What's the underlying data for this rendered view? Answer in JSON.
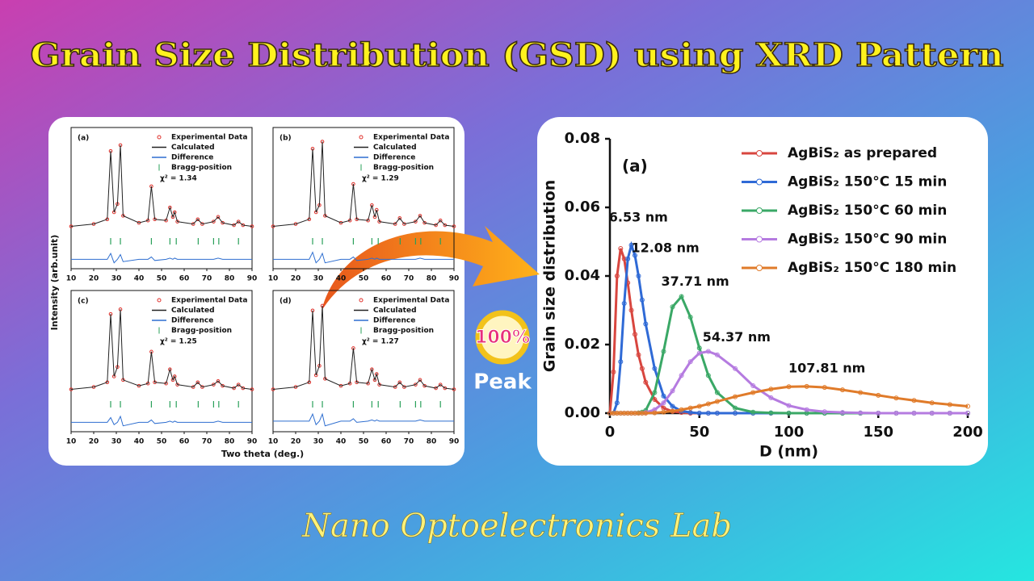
{
  "title": "Grain Size Distribution (GSD) using XRD Pattern",
  "left_figure": {
    "xlabel": "Two theta (deg.)",
    "ylabel": "Intensity (arb.unit)"
  },
  "badge": {
    "top": "100%",
    "bottom": "Peak"
  },
  "footer": "Nano Optoelectronics Lab",
  "chart_data": [
    {
      "type": "line",
      "panel_label": "(a)",
      "box": true,
      "annotation": "χ² = 1.34",
      "x": [
        10,
        20,
        26,
        27.5,
        29,
        30.5,
        31.8,
        33,
        40,
        44,
        45.5,
        47,
        52,
        53.7,
        55,
        55.8,
        57,
        64,
        66,
        68,
        73,
        75,
        77,
        82,
        84,
        86,
        90
      ],
      "xlim": [
        10,
        90
      ],
      "xticks": [
        10,
        20,
        30,
        40,
        50,
        60,
        70,
        80,
        90
      ],
      "ylim": [
        -20,
        100
      ],
      "series": [
        {
          "name": "Experimental Data",
          "color": "#e0302a",
          "marker": "circle",
          "values": [
            16,
            18,
            22,
            80,
            28,
            35,
            85,
            25,
            19,
            21,
            50,
            22,
            21,
            32,
            24,
            28,
            20,
            18,
            22,
            18,
            20,
            24,
            19,
            17,
            20,
            17,
            16
          ]
        },
        {
          "name": "Calculated",
          "color": "#222222",
          "values": [
            16,
            18,
            22,
            80,
            28,
            35,
            85,
            25,
            19,
            21,
            50,
            22,
            21,
            32,
            24,
            28,
            20,
            18,
            22,
            18,
            20,
            24,
            19,
            17,
            20,
            17,
            16
          ]
        },
        {
          "name": "Difference",
          "color": "#2f6fd0",
          "values": [
            -12,
            -12,
            -12,
            -7,
            -15,
            -12,
            -8,
            -14,
            -12,
            -12,
            -10,
            -13,
            -12,
            -11,
            -12,
            -11,
            -12,
            -12,
            -12,
            -12,
            -12,
            -11,
            -12,
            -12,
            -12,
            -12,
            -12
          ]
        },
        {
          "name": "Bragg-position",
          "color": "#2aa05a",
          "marker": "tick",
          "x": [
            27.5,
            31.8,
            45.5,
            53.7,
            56.5,
            66.2,
            73,
            75.3,
            84
          ]
        }
      ]
    },
    {
      "type": "line",
      "panel_label": "(b)",
      "box": true,
      "annotation": "χ² = 1.29",
      "x": [
        10,
        20,
        26,
        27.5,
        29,
        30.5,
        31.8,
        33,
        40,
        44,
        45.5,
        47,
        52,
        53.7,
        55,
        55.8,
        57,
        64,
        66,
        68,
        73,
        75,
        77,
        82,
        84,
        86,
        90
      ],
      "xlim": [
        10,
        90
      ],
      "xticks": [
        10,
        20,
        30,
        40,
        50,
        60,
        70,
        80,
        90
      ],
      "ylim": [
        -20,
        100
      ],
      "series": [
        {
          "name": "Experimental Data",
          "color": "#e0302a",
          "marker": "circle",
          "values": [
            16,
            18,
            22,
            82,
            28,
            34,
            88,
            25,
            19,
            21,
            52,
            22,
            21,
            34,
            24,
            30,
            20,
            18,
            23,
            18,
            20,
            25,
            19,
            17,
            21,
            17,
            16
          ]
        },
        {
          "name": "Calculated",
          "color": "#222222",
          "values": [
            16,
            18,
            22,
            82,
            28,
            34,
            88,
            25,
            19,
            21,
            52,
            22,
            21,
            34,
            24,
            30,
            20,
            18,
            23,
            18,
            20,
            25,
            19,
            17,
            21,
            17,
            16
          ]
        },
        {
          "name": "Difference",
          "color": "#2f6fd0",
          "values": [
            -12,
            -12,
            -12,
            -6,
            -15,
            -12,
            -7,
            -15,
            -12,
            -12,
            -10,
            -13,
            -12,
            -11,
            -12,
            -11,
            -12,
            -12,
            -12,
            -12,
            -12,
            -11,
            -12,
            -12,
            -12,
            -12,
            -12
          ]
        },
        {
          "name": "Bragg-position",
          "color": "#2aa05a",
          "marker": "tick",
          "x": [
            27.5,
            31.8,
            45.5,
            53.7,
            56.5,
            66.2,
            73,
            75.3,
            84
          ]
        }
      ]
    },
    {
      "type": "line",
      "panel_label": "(c)",
      "box": true,
      "annotation": "χ² = 1.25",
      "x": [
        10,
        20,
        26,
        27.5,
        29,
        30.5,
        31.8,
        33,
        40,
        44,
        45.5,
        47,
        52,
        53.7,
        55,
        55.8,
        57,
        64,
        66,
        68,
        73,
        75,
        77,
        82,
        84,
        86,
        90
      ],
      "xlim": [
        10,
        90
      ],
      "xticks": [
        10,
        20,
        30,
        40,
        50,
        60,
        70,
        80,
        90
      ],
      "ylim": [
        -20,
        100
      ],
      "series": [
        {
          "name": "Experimental Data",
          "color": "#e0302a",
          "marker": "circle",
          "values": [
            16,
            18,
            22,
            80,
            27,
            35,
            84,
            24,
            19,
            21,
            48,
            22,
            21,
            33,
            24,
            27,
            20,
            18,
            22,
            18,
            20,
            23,
            19,
            17,
            20,
            17,
            16
          ]
        },
        {
          "name": "Calculated",
          "color": "#222222",
          "values": [
            16,
            18,
            22,
            80,
            27,
            35,
            84,
            24,
            19,
            21,
            48,
            22,
            21,
            33,
            24,
            27,
            20,
            18,
            22,
            18,
            20,
            23,
            19,
            17,
            20,
            17,
            16
          ]
        },
        {
          "name": "Difference",
          "color": "#2f6fd0",
          "values": [
            -12,
            -12,
            -12,
            -8,
            -14,
            -12,
            -7,
            -15,
            -12,
            -12,
            -10,
            -13,
            -12,
            -11,
            -12,
            -11,
            -12,
            -12,
            -12,
            -12,
            -12,
            -11,
            -12,
            -12,
            -12,
            -12,
            -12
          ]
        },
        {
          "name": "Bragg-position",
          "color": "#2aa05a",
          "marker": "tick",
          "x": [
            27.5,
            31.8,
            45.5,
            53.7,
            56.5,
            66.2,
            73,
            75.3,
            84
          ]
        }
      ]
    },
    {
      "type": "line",
      "panel_label": "(d)",
      "box": true,
      "annotation": "χ² = 1.27",
      "x": [
        10,
        20,
        26,
        27.5,
        29,
        30.5,
        31.8,
        33,
        40,
        44,
        45.5,
        47,
        52,
        53.7,
        55,
        55.8,
        57,
        64,
        66,
        68,
        73,
        75,
        77,
        82,
        84,
        86,
        90
      ],
      "xlim": [
        10,
        90
      ],
      "xticks": [
        10,
        20,
        30,
        40,
        50,
        60,
        70,
        80,
        90
      ],
      "ylim": [
        -20,
        100
      ],
      "series": [
        {
          "name": "Experimental Data",
          "color": "#e0302a",
          "marker": "circle",
          "values": [
            16,
            18,
            22,
            83,
            28,
            36,
            87,
            25,
            19,
            21,
            51,
            22,
            21,
            33,
            24,
            29,
            20,
            18,
            22,
            18,
            20,
            24,
            19,
            17,
            20,
            17,
            16
          ]
        },
        {
          "name": "Calculated",
          "color": "#222222",
          "values": [
            16,
            18,
            22,
            83,
            28,
            36,
            87,
            25,
            19,
            21,
            51,
            22,
            21,
            33,
            24,
            29,
            20,
            18,
            22,
            18,
            20,
            24,
            19,
            17,
            20,
            17,
            16
          ]
        },
        {
          "name": "Difference",
          "color": "#2f6fd0",
          "values": [
            -11,
            -11,
            -11,
            -5,
            -14,
            -11,
            -5,
            -15,
            -11,
            -11,
            -9,
            -12,
            -11,
            -10,
            -11,
            -10,
            -11,
            -11,
            -11,
            -11,
            -11,
            -10,
            -11,
            -11,
            -11,
            -11,
            -11
          ]
        },
        {
          "name": "Bragg-position",
          "color": "#2aa05a",
          "marker": "tick",
          "x": [
            27.5,
            31.8,
            45.5,
            53.7,
            56.5,
            66.2,
            73,
            75.3,
            84
          ]
        }
      ]
    },
    {
      "type": "line",
      "panel_label": "(a)",
      "box": false,
      "legend": "upper right",
      "xlabel": "D (nm)",
      "ylabel": "Grain size distribution",
      "x": [
        0,
        2,
        4,
        6,
        8,
        10,
        12,
        14,
        16,
        18,
        20,
        25,
        30,
        35,
        40,
        45,
        50,
        55,
        60,
        70,
        80,
        90,
        100,
        110,
        120,
        130,
        140,
        150,
        160,
        170,
        180,
        190,
        200
      ],
      "xlim": [
        0,
        200
      ],
      "xticks": [
        0,
        50,
        100,
        150,
        200
      ],
      "ylim": [
        0,
        0.08
      ],
      "yticks": [
        {
          "value": 0,
          "label": "0.00"
        },
        0.02,
        0.04,
        0.06,
        0.08
      ],
      "annotations": [
        "6.53 nm",
        "12.08 nm",
        "37.71 nm",
        "54.37 nm",
        "107.81 nm"
      ],
      "series": [
        {
          "name": "AgBiS₂ as prepared",
          "color": "#d8463f",
          "marker": "circle",
          "values": [
            0,
            0.012,
            0.04,
            0.048,
            0.045,
            0.038,
            0.03,
            0.023,
            0.017,
            0.013,
            0.009,
            0.004,
            0.0015,
            0.0005,
            0.0002,
            0,
            0,
            0,
            0,
            0,
            0,
            0,
            0,
            0,
            0,
            0,
            0,
            0,
            0,
            0,
            0,
            0,
            0
          ]
        },
        {
          "name": "AgBiS₂ 150°C 15 min",
          "color": "#2f6ad6",
          "marker": "circle",
          "values": [
            0,
            0,
            0.003,
            0.015,
            0.032,
            0.045,
            0.049,
            0.046,
            0.04,
            0.033,
            0.026,
            0.013,
            0.005,
            0.002,
            0.0006,
            0.0002,
            0,
            0,
            0,
            0,
            0,
            0,
            0,
            0,
            0,
            0,
            0,
            0,
            0,
            0,
            0,
            0,
            0
          ]
        },
        {
          "name": "AgBiS₂ 150°C 60 min",
          "color": "#3aa866",
          "marker": "circle",
          "values": [
            0,
            0,
            0,
            0,
            0,
            0,
            0,
            0,
            0.0001,
            0.0003,
            0.0008,
            0.006,
            0.018,
            0.031,
            0.034,
            0.028,
            0.019,
            0.011,
            0.006,
            0.0015,
            0.0003,
            0.0001,
            0,
            0,
            0,
            0,
            0,
            0,
            0,
            0,
            0,
            0,
            0
          ]
        },
        {
          "name": "AgBiS₂ 150°C 90 min",
          "color": "#b57be0",
          "marker": "circle",
          "values": [
            0,
            0,
            0,
            0,
            0,
            0,
            0,
            0,
            0,
            0,
            0.0002,
            0.001,
            0.003,
            0.0065,
            0.011,
            0.015,
            0.0175,
            0.018,
            0.017,
            0.013,
            0.008,
            0.0045,
            0.0022,
            0.001,
            0.0004,
            0.0002,
            0.0001,
            0,
            0,
            0,
            0,
            0,
            0
          ]
        },
        {
          "name": "AgBiS₂ 150°C 180 min",
          "color": "#e07b2a",
          "marker": "circle",
          "values": [
            0,
            0,
            0,
            0,
            0,
            0,
            0,
            0,
            0,
            0,
            0,
            0.0001,
            0.0003,
            0.0006,
            0.001,
            0.0015,
            0.002,
            0.0027,
            0.0034,
            0.0048,
            0.006,
            0.007,
            0.0077,
            0.0078,
            0.0075,
            0.0068,
            0.006,
            0.0052,
            0.0044,
            0.0037,
            0.003,
            0.0025,
            0.002
          ]
        }
      ]
    }
  ]
}
